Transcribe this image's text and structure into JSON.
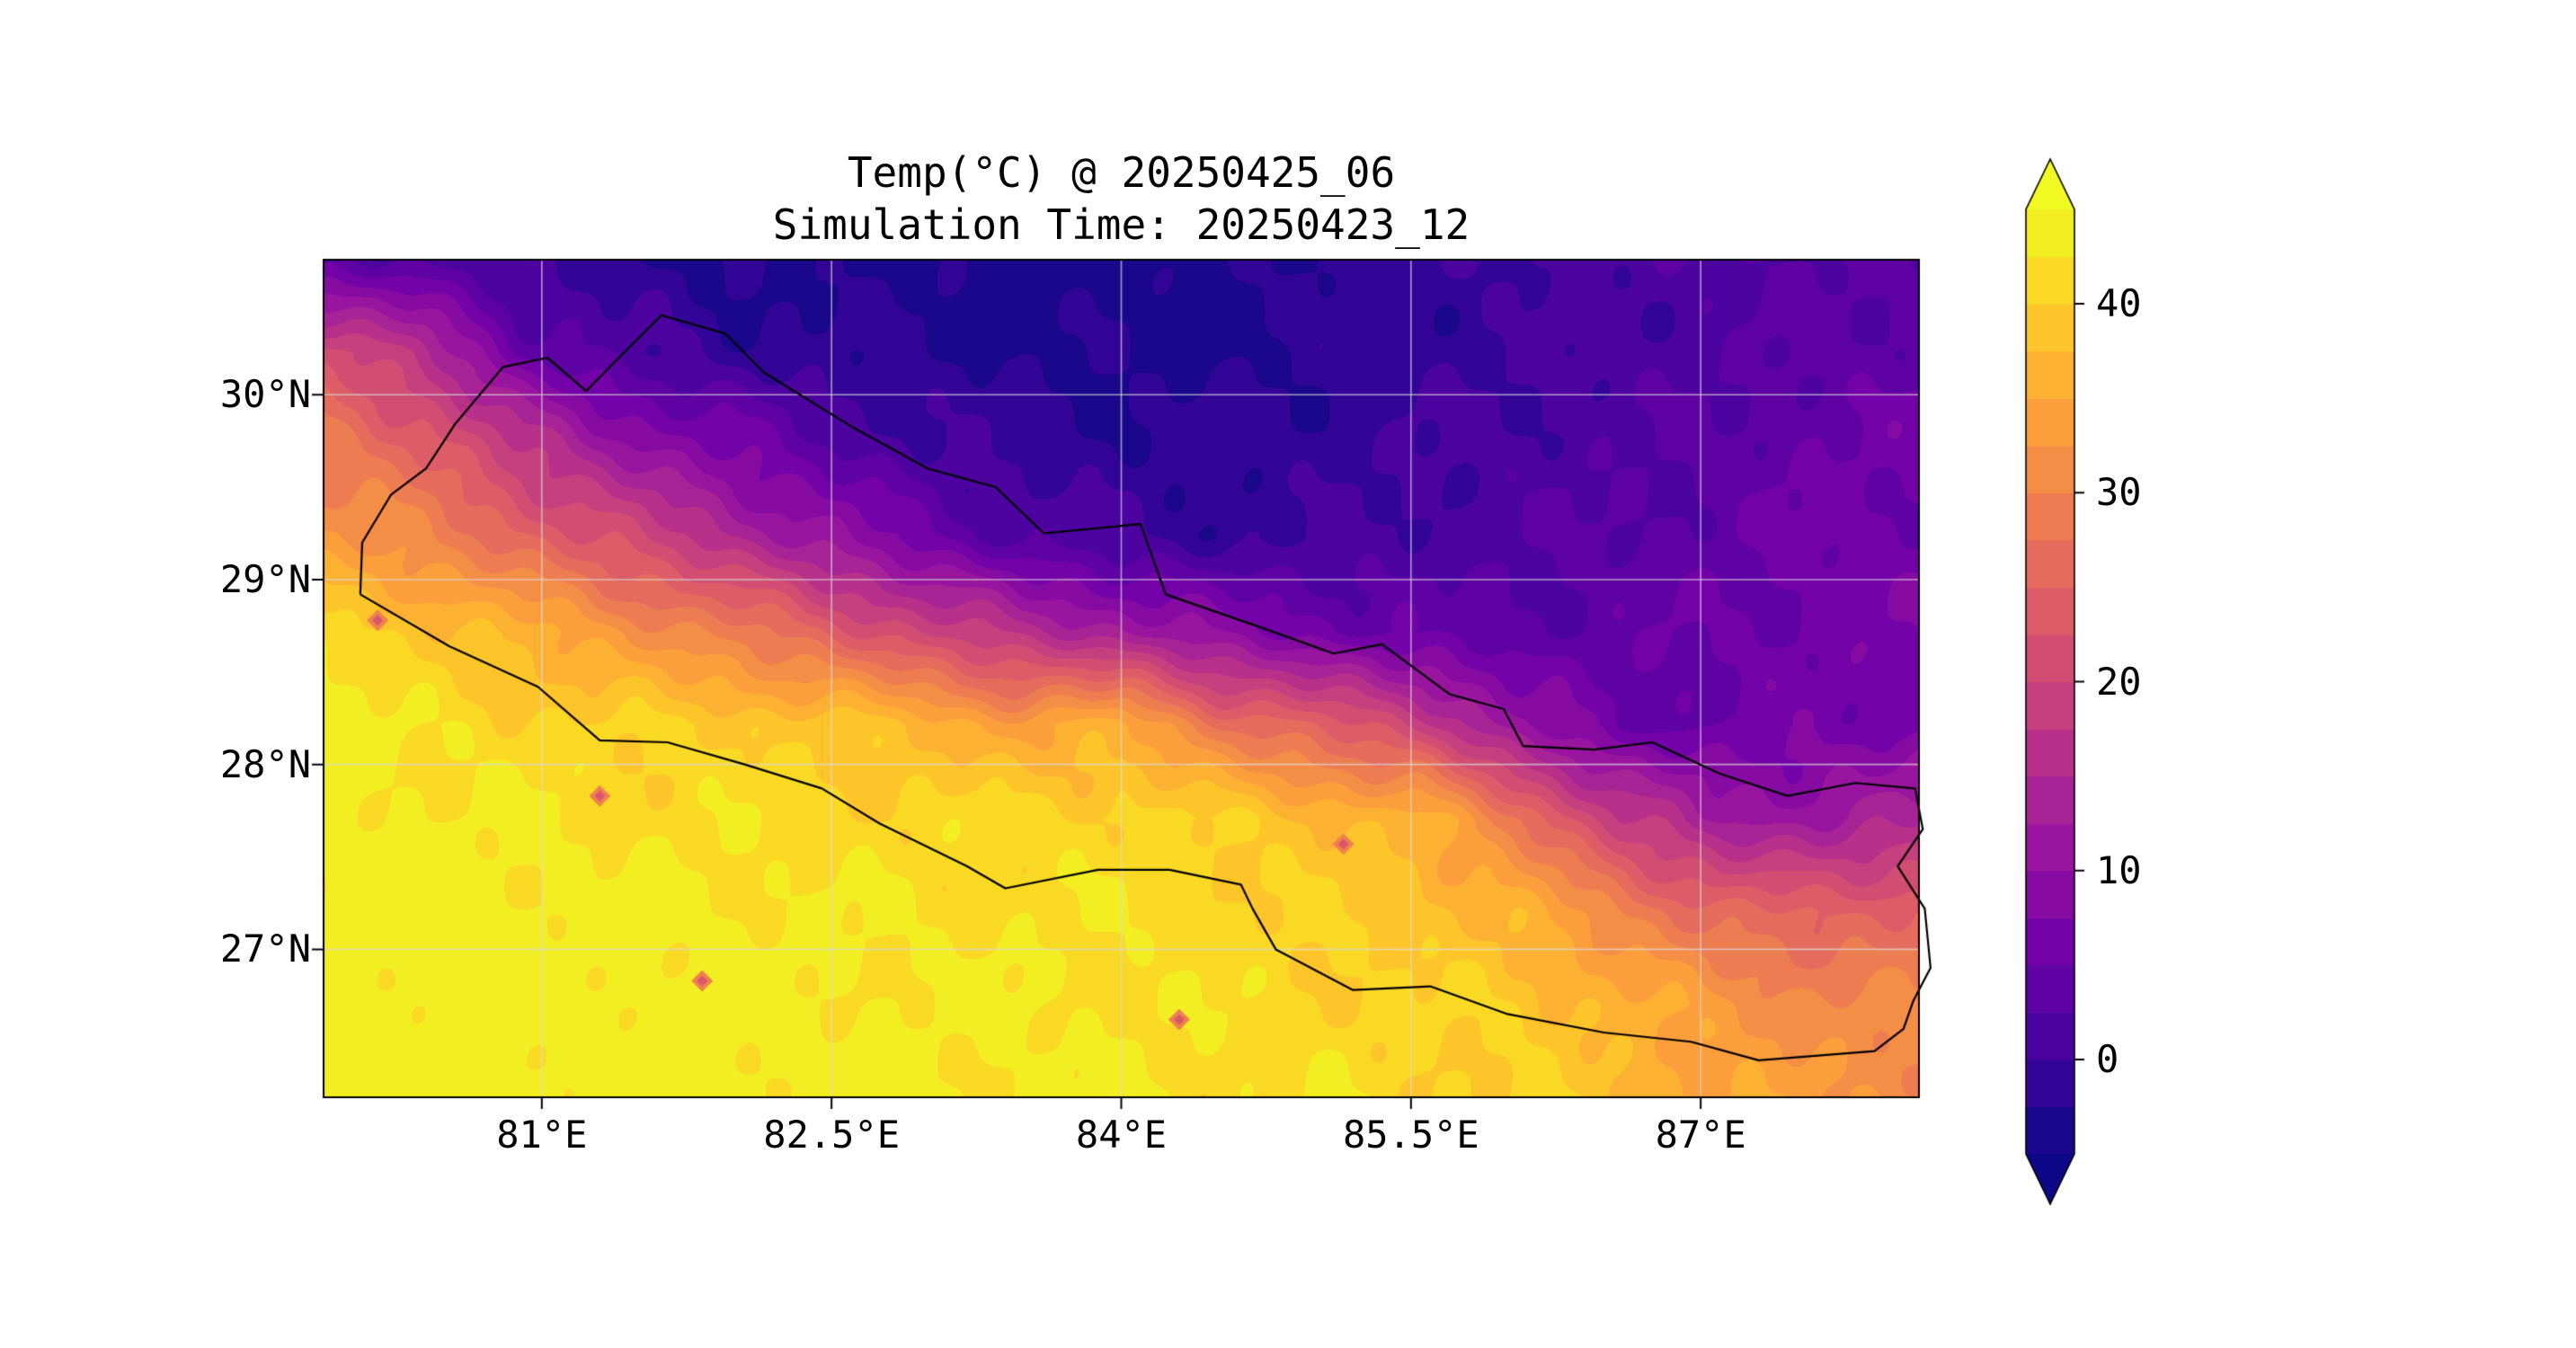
{
  "figure": {
    "background": "#ffffff"
  },
  "chart_data": {
    "type": "heatmap",
    "title": "Temp(°C) @ 20250425_06",
    "subtitle": "Simulation Time: 20250423_12",
    "variable": "Temperature",
    "units": "°C",
    "x_axis": {
      "ticks": [
        {
          "value": 81,
          "label": "81°E"
        },
        {
          "value": 82.5,
          "label": "82.5°E"
        },
        {
          "value": 84,
          "label": "84°E"
        },
        {
          "value": 85.5,
          "label": "85.5°E"
        },
        {
          "value": 87,
          "label": "87°E"
        }
      ]
    },
    "y_axis": {
      "ticks": [
        {
          "value": 27,
          "label": "27°N"
        },
        {
          "value": 28,
          "label": "28°N"
        },
        {
          "value": 29,
          "label": "29°N"
        },
        {
          "value": 30,
          "label": "30°N"
        }
      ]
    },
    "extent": {
      "lon_min": 79.87,
      "lon_max": 88.13,
      "lat_min": 26.2,
      "lat_max": 30.73
    },
    "levels": {
      "min": -5,
      "max": 45,
      "step": 2.5
    },
    "colormap": {
      "name": "plasma",
      "stops": [
        "#0d0887",
        "#46039f",
        "#7201a8",
        "#9c179e",
        "#bd3786",
        "#d8576b",
        "#ed7953",
        "#fb9f3a",
        "#fdca26",
        "#f0f921"
      ]
    },
    "colorbar": {
      "extend": "both",
      "ticks": [
        {
          "value": 0,
          "label": "0"
        },
        {
          "value": 10,
          "label": "10"
        },
        {
          "value": 20,
          "label": "20"
        },
        {
          "value": 30,
          "label": "30"
        },
        {
          "value": 40,
          "label": "40"
        }
      ]
    },
    "gridlines": {
      "color": "rgba(220,220,220,0.7)",
      "lons": [
        81,
        82.5,
        84,
        85.5,
        87
      ],
      "lats": [
        27,
        28,
        29,
        30
      ]
    },
    "grid": {
      "lons": [
        79.87,
        80.39,
        80.9,
        81.42,
        81.94,
        82.45,
        82.97,
        83.48,
        84.0,
        84.52,
        85.03,
        85.55,
        86.06,
        86.58,
        87.1,
        87.61,
        88.13
      ],
      "lats": [
        30.73,
        30.23,
        29.72,
        29.22,
        28.71,
        28.21,
        27.71,
        27.21,
        26.71,
        26.2
      ],
      "temps_c": [
        [
          3,
          2,
          0,
          -2,
          -3,
          -3,
          -3,
          -4,
          -4,
          -3,
          -2,
          -1,
          0,
          1,
          2,
          3,
          3
        ],
        [
          22,
          16,
          5,
          1,
          -1,
          -2,
          -2,
          -3,
          -3,
          -3,
          -2,
          -1,
          0,
          1,
          2,
          3,
          4
        ],
        [
          29,
          25,
          17,
          11,
          7,
          3,
          0,
          -1,
          -2,
          -2,
          -1,
          0,
          1,
          2,
          3,
          5,
          6
        ],
        [
          33,
          30,
          26,
          21,
          16,
          11,
          6,
          2,
          0,
          -1,
          0,
          1,
          2,
          3,
          4,
          6,
          6
        ],
        [
          42,
          39,
          36,
          33,
          29,
          25,
          20,
          16,
          13,
          9,
          6,
          4,
          3,
          4,
          5,
          6,
          7
        ],
        [
          44,
          42,
          41,
          40,
          40,
          39,
          37,
          34,
          36,
          28,
          24,
          20,
          10,
          5,
          5,
          6,
          7
        ],
        [
          44,
          43,
          43,
          42,
          42,
          41,
          41,
          41,
          41,
          40,
          38,
          36,
          28,
          18,
          12,
          12,
          14
        ],
        [
          44,
          44,
          44,
          43,
          43,
          43,
          42,
          42,
          42,
          41,
          40,
          39,
          36,
          30,
          26,
          24,
          26
        ],
        [
          45,
          44,
          44,
          44,
          44,
          43,
          43,
          43,
          42,
          42,
          41,
          40,
          40,
          36,
          33,
          31,
          30
        ],
        [
          45,
          45,
          44,
          44,
          44,
          44,
          43,
          43,
          43,
          42,
          42,
          41,
          40,
          38,
          35,
          33,
          32
        ]
      ]
    },
    "nepal_border": [
      [
        80.06,
        28.92
      ],
      [
        80.07,
        29.2
      ],
      [
        80.22,
        29.46
      ],
      [
        80.4,
        29.6
      ],
      [
        80.55,
        29.84
      ],
      [
        80.8,
        30.15
      ],
      [
        81.03,
        30.2
      ],
      [
        81.23,
        30.02
      ],
      [
        81.4,
        30.2
      ],
      [
        81.62,
        30.43
      ],
      [
        81.95,
        30.33
      ],
      [
        82.15,
        30.12
      ],
      [
        82.6,
        29.83
      ],
      [
        83.0,
        29.6
      ],
      [
        83.35,
        29.5
      ],
      [
        83.6,
        29.25
      ],
      [
        84.1,
        29.3
      ],
      [
        84.23,
        28.92
      ],
      [
        84.7,
        28.75
      ],
      [
        85.1,
        28.6
      ],
      [
        85.35,
        28.65
      ],
      [
        85.7,
        28.38
      ],
      [
        85.98,
        28.3
      ],
      [
        86.08,
        28.1
      ],
      [
        86.45,
        28.08
      ],
      [
        86.75,
        28.12
      ],
      [
        87.1,
        27.95
      ],
      [
        87.45,
        27.83
      ],
      [
        87.8,
        27.9
      ],
      [
        88.11,
        27.87
      ],
      [
        88.15,
        27.65
      ],
      [
        88.02,
        27.45
      ],
      [
        88.16,
        27.22
      ],
      [
        88.19,
        26.9
      ],
      [
        88.1,
        26.72
      ],
      [
        88.05,
        26.57
      ],
      [
        87.9,
        26.45
      ],
      [
        87.3,
        26.4
      ],
      [
        86.95,
        26.5
      ],
      [
        86.5,
        26.55
      ],
      [
        86.0,
        26.65
      ],
      [
        85.6,
        26.8
      ],
      [
        85.2,
        26.78
      ],
      [
        84.8,
        27.0
      ],
      [
        84.68,
        27.22
      ],
      [
        84.62,
        27.35
      ],
      [
        84.25,
        27.43
      ],
      [
        83.88,
        27.43
      ],
      [
        83.4,
        27.33
      ],
      [
        83.2,
        27.45
      ],
      [
        82.75,
        27.68
      ],
      [
        82.45,
        27.87
      ],
      [
        82.05,
        28.0
      ],
      [
        81.65,
        28.12
      ],
      [
        81.3,
        28.13
      ],
      [
        80.98,
        28.42
      ],
      [
        80.52,
        28.64
      ],
      [
        80.06,
        28.92
      ]
    ],
    "hot_spots": [
      [
        81.3,
        27.83
      ],
      [
        81.83,
        26.83
      ],
      [
        84.3,
        26.62
      ],
      [
        80.15,
        28.78
      ],
      [
        85.15,
        27.57
      ]
    ]
  }
}
